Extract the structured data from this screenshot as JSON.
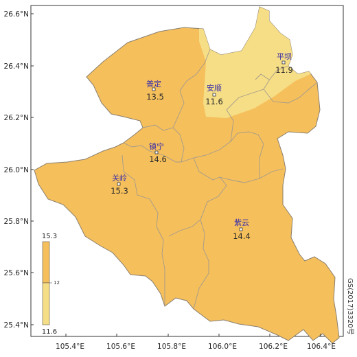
{
  "colors": {
    "region_fill": "#f5bf5c",
    "low_fill": "#f6de86",
    "county_border": "#a49b8c",
    "frame": "#333333",
    "label_text": "#3a2fa8"
  },
  "axes": {
    "y_ticks": [
      "26.6°N",
      "26.4°N",
      "26.2°N",
      "26.0°N",
      "25.8°N",
      "25.6°N",
      "25.4°N"
    ],
    "x_ticks": [
      "105.4°E",
      "105.6°E",
      "105.8°E",
      "106.0°E",
      "106.2°E",
      "106.4°E"
    ]
  },
  "stations": [
    {
      "name": "普定",
      "value": "13.5"
    },
    {
      "name": "安顺",
      "value": "11.6"
    },
    {
      "name": "平坝",
      "value": "11.9"
    },
    {
      "name": "镇宁",
      "value": "14.6"
    },
    {
      "name": "关岭",
      "value": "15.3"
    },
    {
      "name": "紫云",
      "value": "14.4"
    }
  ],
  "legend": {
    "max": "15.3",
    "mid": "12",
    "min": "11.6"
  },
  "credit": "GS(2017)3320号"
}
